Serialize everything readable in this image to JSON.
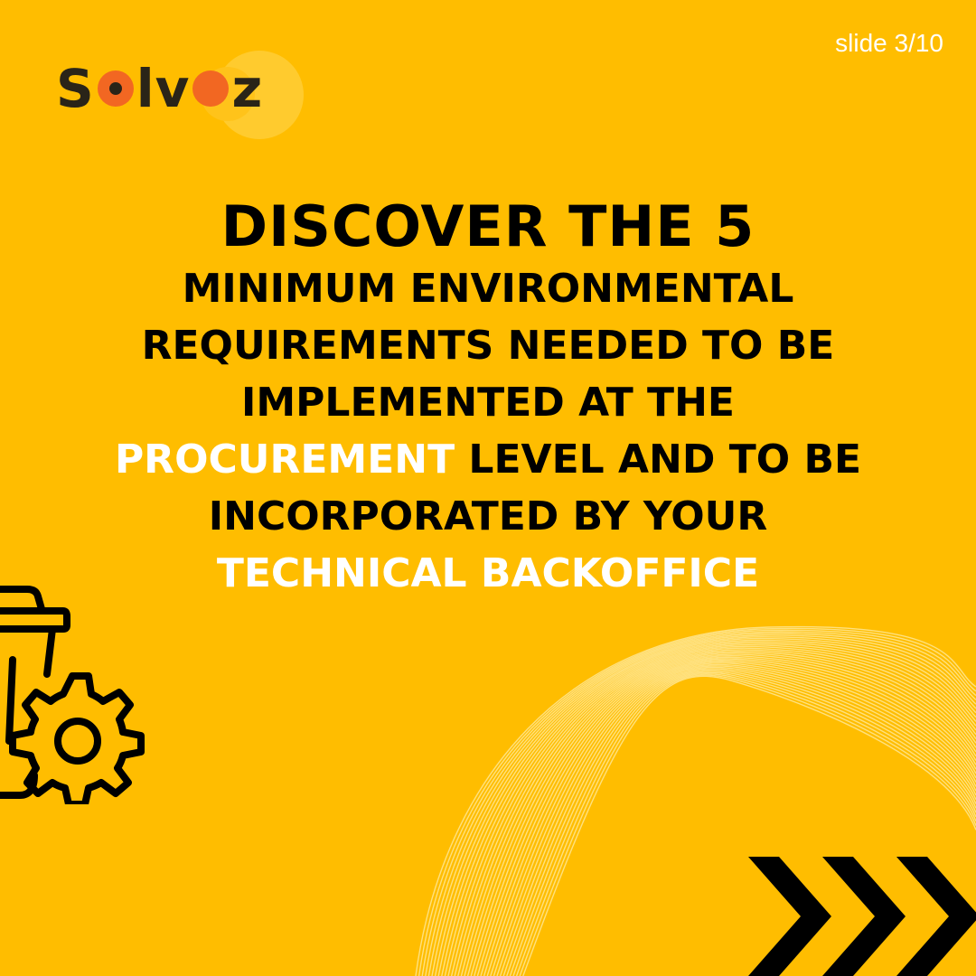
{
  "slide_counter": "slide 3/10",
  "logo": {
    "part1": "S",
    "part2": "lv",
    "part3": "z",
    "alt_text": "Solvoz",
    "accent_color": "#F26722"
  },
  "headline": {
    "line1": "DISCOVER THE 5",
    "line2": "MINIMUM ENVIRONMENTAL",
    "line3": "REQUIREMENTS NEEDED TO BE",
    "line4": "IMPLEMENTED AT THE",
    "line5_highlight": "PROCUREMENT",
    "line5_rest": " LEVEL AND TO BE",
    "line6": "INCORPORATED BY YOUR",
    "line7_highlight": "TECHNICAL BACKOFFICE"
  },
  "colors": {
    "background": "#FFBD00",
    "text": "#000000",
    "highlight": "#FFFFFF"
  },
  "icons": [
    "trash-bin-gear-icon",
    "next-chevrons-icon"
  ]
}
